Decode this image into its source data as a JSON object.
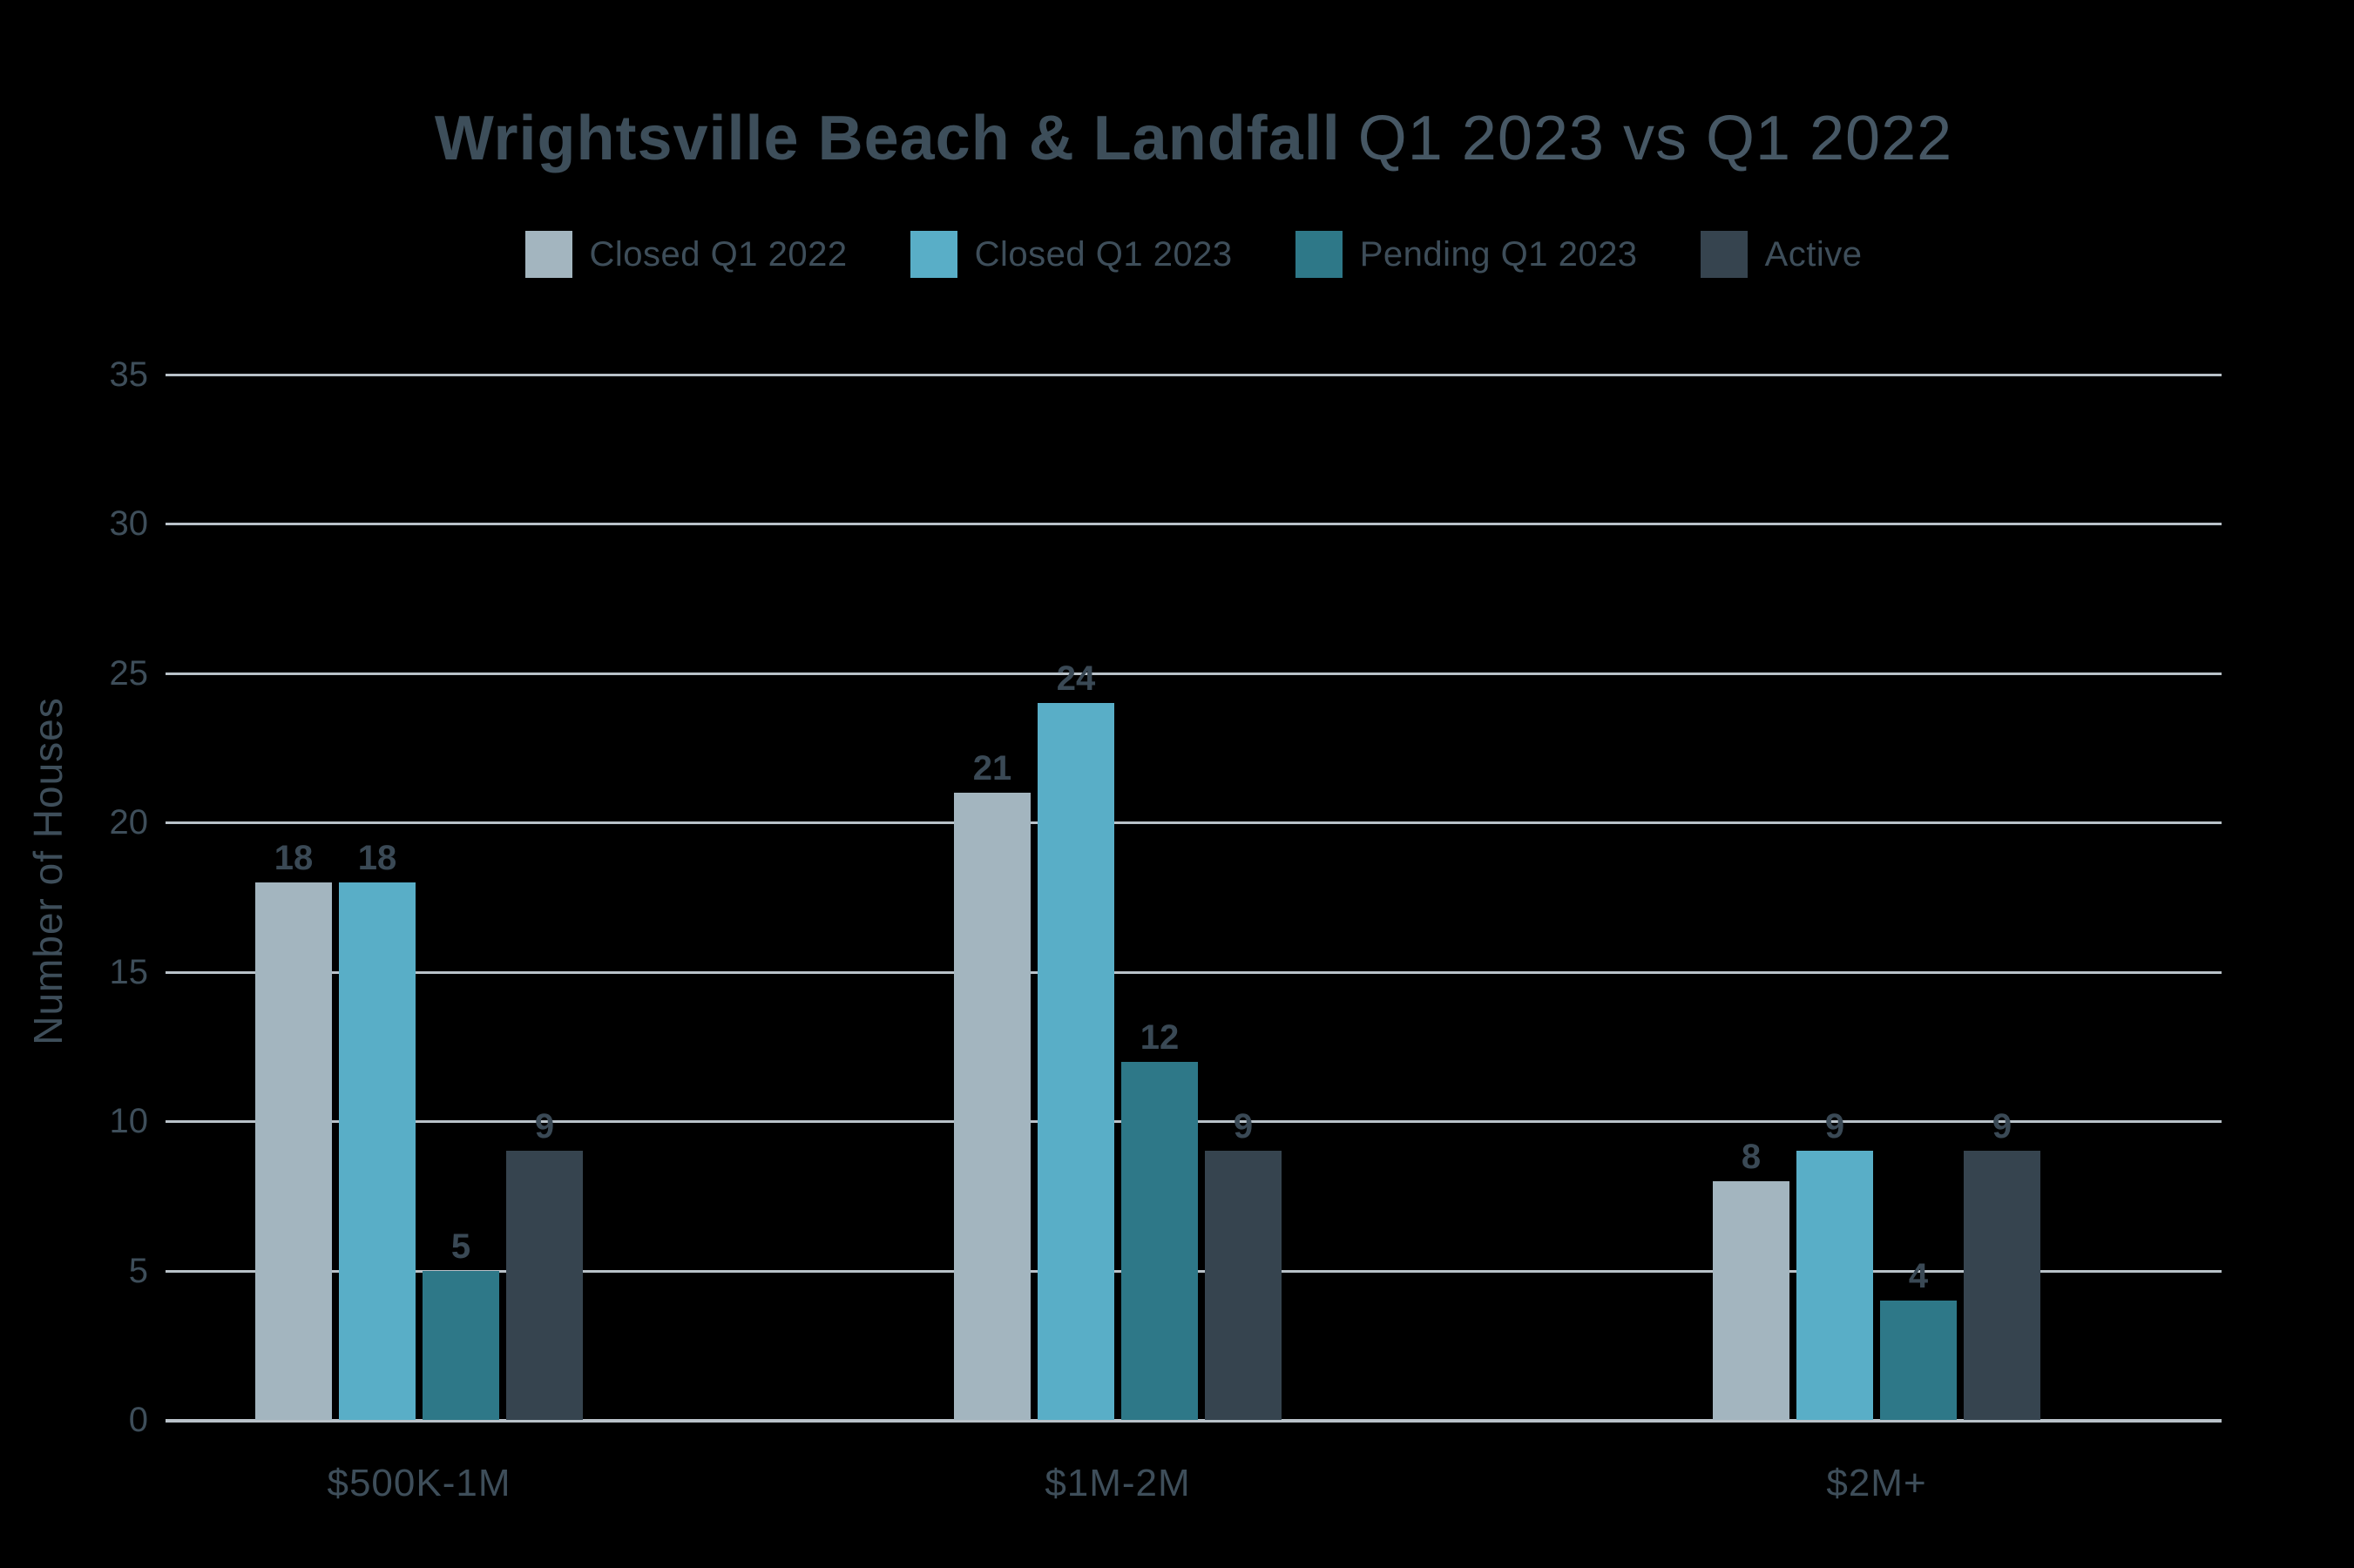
{
  "title": {
    "bold": "Wrightsville Beach & Landfall",
    "regular": "Q1 2023 vs Q1 2022"
  },
  "colors": {
    "background": "#000000",
    "text": "#3e4e5a",
    "value_label": "#3a4955",
    "gridline": "#b9c2c9",
    "closed_q1_2022": "#a3b5bf",
    "closed_q1_2023": "#59aec7",
    "pending_q1_2023": "#2e7888",
    "active": "#36444f"
  },
  "chart_data": {
    "type": "bar",
    "title": "Wrightsville Beach & Landfall Q1 2023 vs Q1 2022",
    "xlabel": "",
    "ylabel": "Number of Houses",
    "ylim": [
      0,
      35
    ],
    "yticks": [
      0,
      5,
      10,
      15,
      20,
      25,
      30,
      35
    ],
    "grid": true,
    "legend_position": "top",
    "categories": [
      "$500K-1M",
      "$1M-2M",
      "$2M+"
    ],
    "series": [
      {
        "name": "Closed Q1 2022",
        "color": "#a3b5bf",
        "values": [
          18,
          21,
          8
        ]
      },
      {
        "name": "Closed Q1 2023",
        "color": "#59aec7",
        "values": [
          18,
          24,
          9
        ]
      },
      {
        "name": "Pending Q1 2023",
        "color": "#2e7888",
        "values": [
          5,
          12,
          4
        ]
      },
      {
        "name": "Active",
        "color": "#36444f",
        "values": [
          9,
          9,
          9
        ]
      }
    ]
  }
}
